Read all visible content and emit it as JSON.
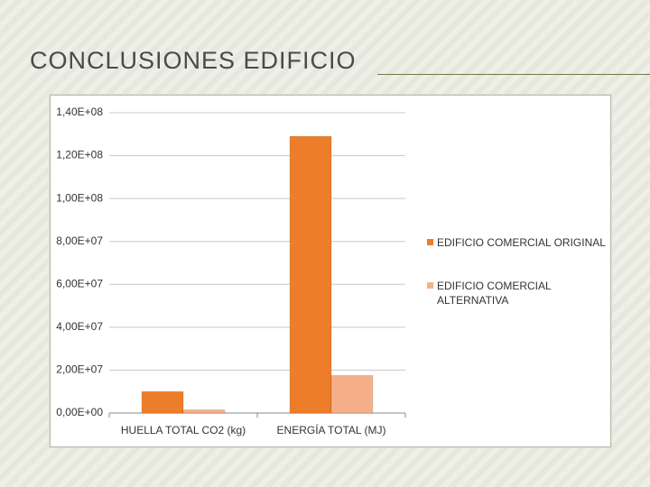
{
  "title": "CONCLUSIONES EDIFICIO",
  "chart_data": {
    "type": "bar",
    "categories": [
      "HUELLA TOTAL  CO2 (kg)",
      "ENERGÍA TOTAL (MJ)"
    ],
    "series": [
      {
        "name": "EDIFICIO COMERCIAL ORIGINAL",
        "color": "#ee7d2a",
        "values": [
          10000000,
          129000000
        ]
      },
      {
        "name": "EDIFICIO COMERCIAL ALTERNATIVA",
        "color": "#f5b089",
        "values": [
          1500000,
          17500000
        ]
      }
    ],
    "ylim": [
      0,
      140000000
    ],
    "yticks": [
      {
        "value": 0,
        "label": "0,00E+00"
      },
      {
        "value": 20000000,
        "label": "2,00E+07"
      },
      {
        "value": 40000000,
        "label": "4,00E+07"
      },
      {
        "value": 60000000,
        "label": "6,00E+07"
      },
      {
        "value": 80000000,
        "label": "8,00E+07"
      },
      {
        "value": 100000000,
        "label": "1,00E+08"
      },
      {
        "value": 120000000,
        "label": "1,20E+08"
      },
      {
        "value": 140000000,
        "label": "1,40E+08"
      }
    ],
    "grid": true,
    "legend": "right"
  }
}
